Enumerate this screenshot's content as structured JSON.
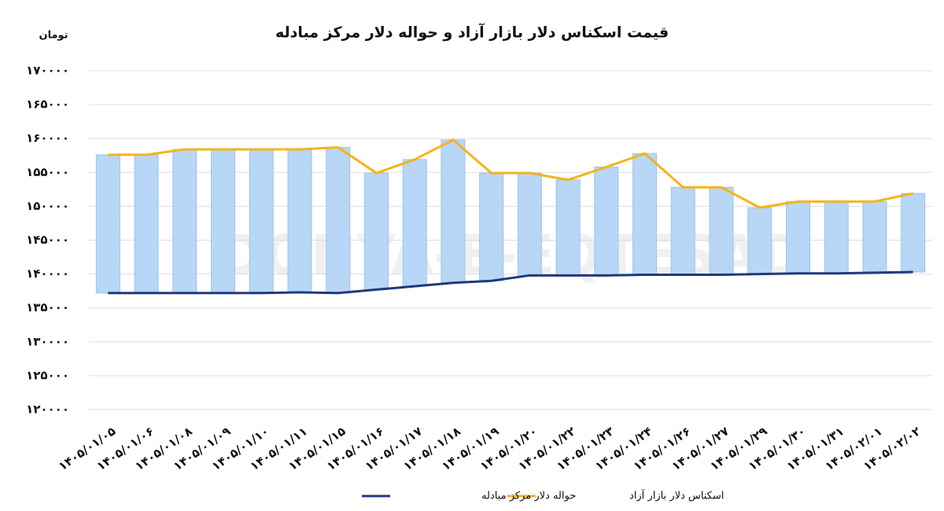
{
  "chart_data": {
    "type": "range-line",
    "title": "قیمت اسکناس دلار بازار آزاد و حواله دلار مرکز مبادله",
    "y_label": "تومان",
    "watermark": "DONYA-E-EQTESAD",
    "categories": [
      "۱۴۰۵/۰۱/۰۵",
      "۱۴۰۵/۰۱/۰۶",
      "۱۴۰۵/۰۱/۰۸",
      "۱۴۰۵/۰۱/۰۹",
      "۱۴۰۵/۰۱/۱۰",
      "۱۴۰۵/۰۱/۱۱",
      "۱۴۰۵/۰۱/۱۵",
      "۱۴۰۵/۰۱/۱۶",
      "۱۴۰۵/۰۱/۱۷",
      "۱۴۰۵/۰۱/۱۸",
      "۱۴۰۵/۰۱/۱۹",
      "۱۴۰۵/۰۱/۲۰",
      "۱۴۰۵/۰۱/۲۲",
      "۱۴۰۵/۰۱/۲۳",
      "۱۴۰۵/۰۱/۲۴",
      "۱۴۰۵/۰۱/۲۶",
      "۱۴۰۵/۰۱/۲۷",
      "۱۴۰۵/۰۱/۲۹",
      "۱۴۰۵/۰۱/۳۰",
      "۱۴۰۵/۰۱/۳۱",
      "۱۴۰۵/۰۲/۰۱",
      "۱۴۰۵/۰۲/۰۲"
    ],
    "series": [
      {
        "name": "اسکناس دلار بازار آزاد",
        "color": "#f4b41a",
        "values": [
          157600,
          157600,
          158400,
          158400,
          158400,
          158400,
          158700,
          154900,
          156900,
          159800,
          154900,
          154900,
          153900,
          155800,
          157800,
          152800,
          152800,
          149800,
          150700,
          150700,
          150700,
          151900
        ]
      },
      {
        "name": "حواله دلار مرکز مبادله",
        "color": "#1f3a7a",
        "values": [
          137200,
          137200,
          137200,
          137200,
          137200,
          137300,
          137200,
          137700,
          138200,
          138700,
          139000,
          139800,
          139800,
          139800,
          139900,
          139900,
          139900,
          140000,
          140100,
          140100,
          140200,
          140300
        ]
      }
    ],
    "bar_color": "#b8d6f6",
    "ylim": [
      120000,
      170000
    ],
    "yticks": [
      {
        "value": 120000,
        "label": "۱۲۰۰۰۰"
      },
      {
        "value": 125000,
        "label": "۱۲۵۰۰۰"
      },
      {
        "value": 130000,
        "label": "۱۳۰۰۰۰"
      },
      {
        "value": 135000,
        "label": "۱۳۵۰۰۰"
      },
      {
        "value": 140000,
        "label": "۱۴۰۰۰۰"
      },
      {
        "value": 145000,
        "label": "۱۴۵۰۰۰"
      },
      {
        "value": 150000,
        "label": "۱۵۰۰۰۰"
      },
      {
        "value": 155000,
        "label": "۱۵۵۰۰۰"
      },
      {
        "value": 160000,
        "label": "۱۶۰۰۰۰"
      },
      {
        "value": 165000,
        "label": "۱۶۵۰۰۰"
      },
      {
        "value": 170000,
        "label": "۱۷۰۰۰۰"
      }
    ],
    "grid": true
  }
}
